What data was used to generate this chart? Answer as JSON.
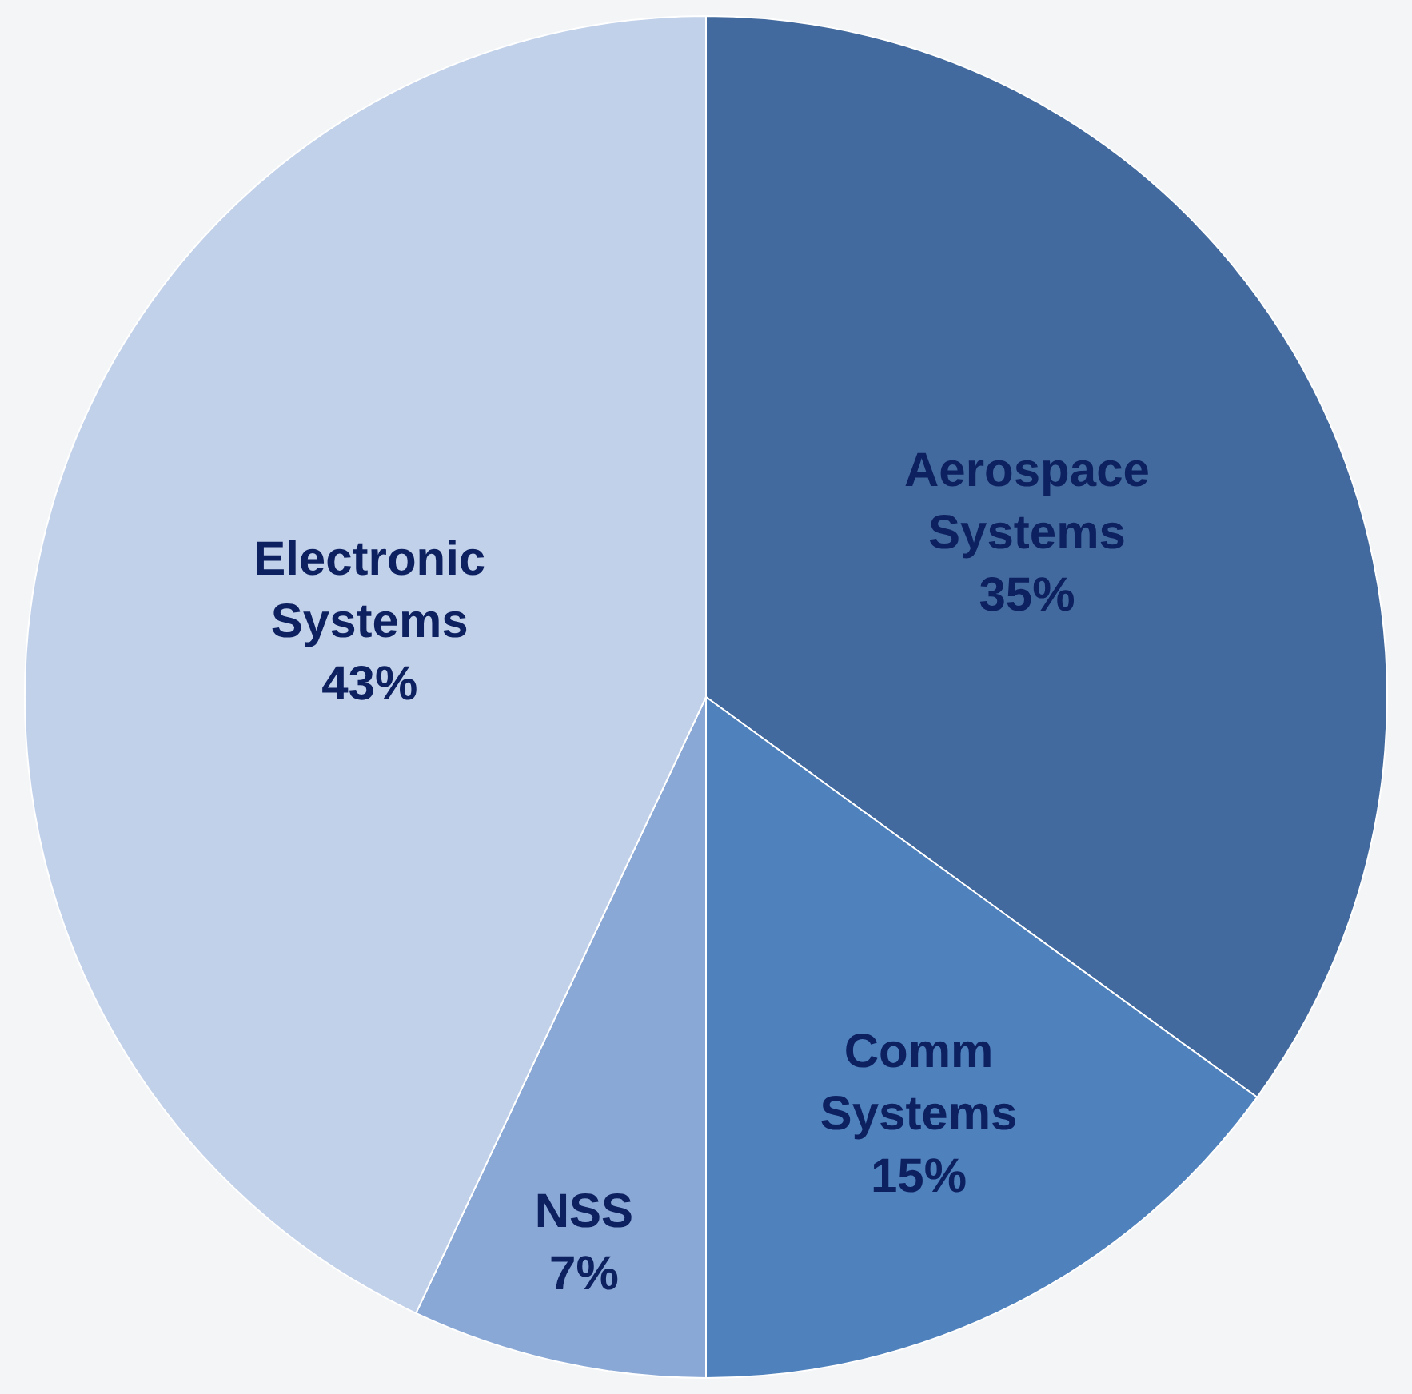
{
  "chart_data": {
    "type": "pie",
    "categories": [
      "Aerospace Systems",
      "Comm Systems",
      "NSS",
      "Electronic Systems"
    ],
    "values": [
      35,
      15,
      7,
      43
    ],
    "value_labels": [
      "35%",
      "15%",
      "7%",
      "43%"
    ],
    "colors": [
      "#436a9e",
      "#4f81bd",
      "#8aa8d6",
      "#c2d1ea"
    ],
    "legend": false
  }
}
